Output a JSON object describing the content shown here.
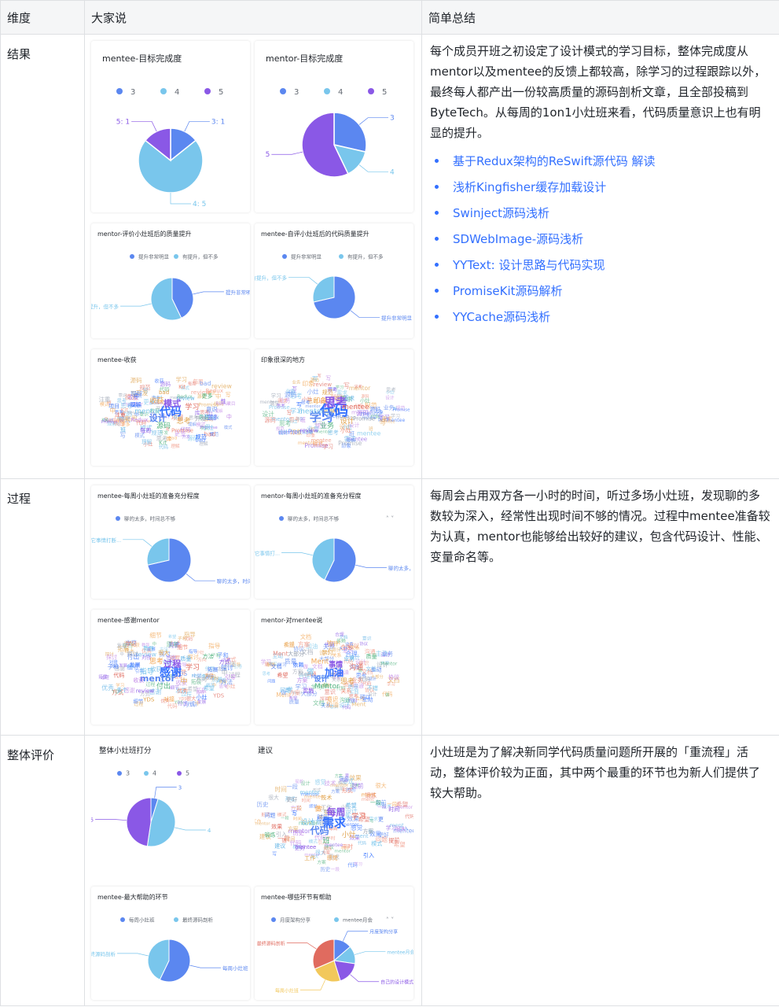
{
  "table": {
    "headers": [
      "维度",
      "大家说",
      "简单总结"
    ],
    "rows": [
      {
        "dimension": "结果",
        "summary": "每个成员开班之初设定了设计模式的学习目标，整体完成度从mentor以及mentee的反馈上都较高，除学习的过程跟踪以外，最终每人都产出一份较高质量的源码剖析文章，且全部投稿到ByteTech。从每周的1on1小灶班来看，代码质量意识上也有明显的提升。",
        "links": [
          "基于Redux架构的ReSwift源代码 解读",
          "浅析Kingfisher缓存加载设计",
          "Swinject源码浅析",
          "SDWebImage-源码浅析",
          "YYText: 设计思路与代码实现",
          "PromiseKit源码解析",
          "YYCache源码浅析"
        ]
      },
      {
        "dimension": "过程",
        "summary": "每周会占用双方各一小时的时间，听过多场小灶班，发现聊的多数较为深入，经常性出现时间不够的情况。过程中mentee准备较为认真，mentor也能够给出较好的建议，包含代码设计、性能、变量命名等。"
      },
      {
        "dimension": "整体评价",
        "summary": "小灶班是为了解决新同学代码质量问题所开展的「重流程」活动，整体评价较为正面，其中两个最重的环节也为新人们提供了较大帮助。"
      }
    ]
  },
  "colors": {
    "blue": "#5b87f0",
    "cyan": "#79c6ec",
    "purple": "#8a58e6",
    "red": "#e06b5f",
    "yellow": "#f2c85b",
    "link": "#3370ff"
  },
  "chart_data": [
    {
      "type": "pie",
      "title": "mentee-目标完成度",
      "legend": [
        "3",
        "4",
        "5"
      ],
      "slices": [
        {
          "name": "3",
          "value": 1
        },
        {
          "name": "4",
          "value": 5
        },
        {
          "name": "5",
          "value": 1
        }
      ],
      "labels": [
        "3: 1",
        "4: 5",
        "5: 1"
      ]
    },
    {
      "type": "pie",
      "title": "mentor-目标完成度",
      "legend": [
        "3",
        "4",
        "5"
      ],
      "slices": [
        {
          "name": "3",
          "value": 2
        },
        {
          "name": "4",
          "value": 1
        },
        {
          "name": "5",
          "value": 4
        }
      ],
      "labels": [
        "3",
        "4",
        "5"
      ]
    },
    {
      "type": "pie",
      "title": "mentor-评价小灶班后的质量提升",
      "legend": [
        "提升非常明显",
        "有提升，但不多"
      ],
      "slices": [
        {
          "name": "提升非常明显",
          "value": 3
        },
        {
          "name": "有提升，但不多",
          "value": 4
        }
      ],
      "labels": [
        "提升非常明显",
        "有提升，但不多"
      ]
    },
    {
      "type": "pie",
      "title": "mentee-自评小灶班后的代码质量提升",
      "legend": [
        "提升非常明显",
        "有提升，但不多"
      ],
      "slices": [
        {
          "name": "提升非常明显",
          "value": 5
        },
        {
          "name": "有提升，但不多",
          "value": 2
        }
      ],
      "labels": [
        "提升非常明显",
        "有提升，但不多"
      ]
    },
    {
      "type": "pie",
      "title": "mentee-每周小灶班的准备充分程度",
      "legend": [
        "聊的太多，时间总不够"
      ],
      "slices": [
        {
          "name": "聊的太多，时间总不够",
          "value": 5
        },
        {
          "name": "被其它事情打断",
          "value": 2
        }
      ],
      "labels": [
        "聊的太多，时间...",
        "被其它事情打断..."
      ]
    },
    {
      "type": "pie",
      "title": "mentor-每周小灶班的准备充分程度",
      "legend": [
        "聊的太多，时间总不够"
      ],
      "slices": [
        {
          "name": "聊的太多，时间总不够",
          "value": 4
        },
        {
          "name": "被其它事情打断",
          "value": 3
        }
      ],
      "labels": [
        "聊的太多，时...",
        "被其它事情打..."
      ]
    },
    {
      "type": "pie",
      "title": "整体小灶班打分",
      "legend": [
        "3",
        "4",
        "5"
      ],
      "slices": [
        {
          "name": "3",
          "value": 0.3
        },
        {
          "name": "4",
          "value": 3
        },
        {
          "name": "5",
          "value": 3
        }
      ],
      "labels": [
        "3",
        "4",
        "5"
      ]
    },
    {
      "type": "pie",
      "title": "mentee-最大帮助的环节",
      "legend": [
        "每周小灶班",
        "最终源码剖析"
      ],
      "slices": [
        {
          "name": "每周小灶班",
          "value": 4
        },
        {
          "name": "最终源码剖析",
          "value": 3
        }
      ],
      "labels": [
        "每周小灶班",
        "最终源码剖析"
      ]
    },
    {
      "type": "pie",
      "title": "mentee-哪些环节有帮助",
      "legend": [
        "月度架构分享",
        "mentee月会"
      ],
      "slices": [
        {
          "name": "月度架构分享",
          "value": 1
        },
        {
          "name": "mentee月会",
          "value": 1
        },
        {
          "name": "自己的设计模式",
          "value": 1.3
        },
        {
          "name": "每周小灶班",
          "value": 1.7
        },
        {
          "name": "最终源码剖析",
          "value": 2.3
        }
      ],
      "labels": [
        "月度架构分享",
        "mentee月会",
        "自己的设计模式...",
        "每周小灶班",
        "最终源码剖析"
      ]
    }
  ],
  "clouds": [
    {
      "title": "mentee-收获",
      "words": [
        "代码",
        "设计",
        "模式",
        "思考",
        "mentor",
        "学习",
        "源码",
        "收获",
        "开发",
        "Redux",
        "review",
        "Promise",
        "理解",
        "意识",
        "每周",
        "bad",
        "小灶",
        "注重",
        "更多",
        "库",
        "写",
        "中",
        "班",
        "Kit",
        "规范",
        "项目",
        "性"
      ]
    },
    {
      "title": "印象很深的地方",
      "words": [
        "代码",
        "学习",
        "思考",
        "设计",
        "mentor",
        "mentee",
        "业务",
        "印象",
        "Promise",
        "班",
        "需求",
        "小灶",
        "写",
        "源码",
        "review",
        "规范"
      ]
    },
    {
      "title": "mentee-感谢mentor",
      "words": [
        "感谢",
        "mentor",
        "过程",
        "中",
        "指导",
        "学习",
        "付出",
        "思考",
        "方向",
        "收获",
        "质量",
        "优秀",
        "发展",
        "拓展",
        "review",
        "很大",
        "希望",
        "代码",
        "方法",
        "对接",
        "探讨",
        "引导",
        "多个",
        "细节",
        "小灶",
        "子和",
        "方式",
        "YDS",
        "教导"
      ]
    },
    {
      "title": "mentor-对mentee说",
      "words": [
        "加油",
        "设计",
        "事情",
        "思考",
        "做",
        "沟通",
        "Mentor",
        "Ment",
        "代码",
        "方案",
        "业务",
        "关系",
        "依赖",
        "主动",
        "实践",
        "学习",
        "不错",
        "希望",
        "质量",
        "意识",
        "大部分",
        "协议",
        "问题",
        "合理",
        "可以",
        "文档"
      ]
    },
    {
      "title": "建议",
      "words": [
        "需求",
        "代码",
        "每周",
        "小灶",
        "设计",
        "学习",
        "班",
        "做",
        "方案",
        "历史",
        "希望",
        "平时",
        "写",
        "更",
        "mentee",
        "技术",
        "模式",
        "效果",
        "一段",
        "感觉",
        "更好",
        "很大",
        "建议",
        "形式",
        "引入",
        "问题",
        "时间",
        "工作",
        "mentor",
        "提前",
        "锻炼",
        "ment"
      ]
    }
  ]
}
